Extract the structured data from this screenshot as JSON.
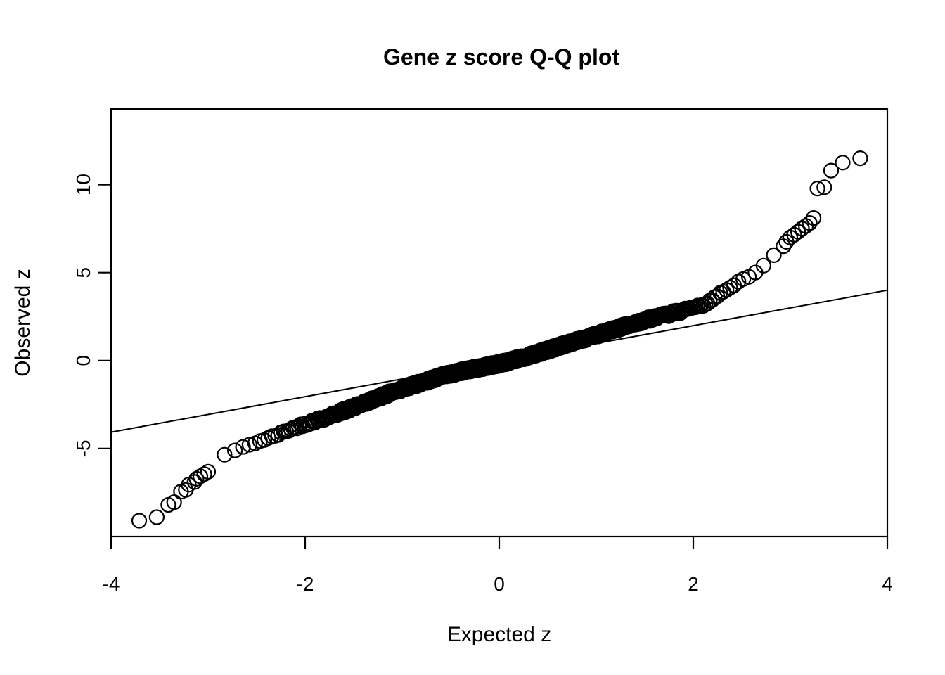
{
  "page": {
    "background": "#ffffff",
    "foreground": "#000000"
  },
  "chart_data": {
    "type": "scatter",
    "title": "Gene z score Q-Q plot",
    "xlabel": "Expected z",
    "ylabel": "Observed z",
    "xlim": [
      -4,
      4
    ],
    "ylim": [
      -10,
      14.3
    ],
    "x_ticks": [
      "-4",
      "-2",
      "0",
      "2",
      "4"
    ],
    "x_tick_values": [
      -4,
      -2,
      0,
      2,
      4
    ],
    "y_ticks": [
      "-5",
      "0",
      "5",
      "10"
    ],
    "y_tick_values": [
      -5,
      0,
      5,
      10
    ],
    "grid": false,
    "legend": "none",
    "point_style": {
      "marker": "open-circle",
      "color": "#000000",
      "radius_px": 10,
      "stroke_px": 2.2
    },
    "reference_line": {
      "slope": 1.009,
      "intercept": -0.035,
      "color": "#000000",
      "x_span": [
        -4,
        4
      ]
    },
    "curve_points": [
      [
        -2.96,
        -6.15
      ],
      [
        -2.9,
        -5.8
      ],
      [
        -2.83,
        -5.35
      ],
      [
        -2.7,
        -5.05
      ],
      [
        -2.6,
        -4.85
      ],
      [
        -2.45,
        -4.55
      ],
      [
        -2.32,
        -4.3
      ],
      [
        -2.15,
        -3.9
      ],
      [
        -2.0,
        -3.6
      ],
      [
        -1.8,
        -3.25
      ],
      [
        -1.6,
        -2.85
      ],
      [
        -1.4,
        -2.45
      ],
      [
        -1.2,
        -2.0
      ],
      [
        -1.0,
        -1.6
      ],
      [
        -0.8,
        -1.25
      ],
      [
        -0.6,
        -0.9
      ],
      [
        -0.4,
        -0.62
      ],
      [
        -0.2,
        -0.4
      ],
      [
        0.0,
        -0.18
      ],
      [
        0.2,
        0.1
      ],
      [
        0.4,
        0.42
      ],
      [
        0.6,
        0.78
      ],
      [
        0.8,
        1.12
      ],
      [
        1.0,
        1.45
      ],
      [
        1.2,
        1.8
      ],
      [
        1.4,
        2.12
      ],
      [
        1.6,
        2.45
      ],
      [
        1.8,
        2.7
      ],
      [
        2.0,
        2.95
      ],
      [
        2.15,
        3.3
      ],
      [
        2.35,
        4.1
      ],
      [
        2.5,
        4.55
      ],
      [
        2.6,
        4.85
      ],
      [
        2.7,
        5.25
      ],
      [
        2.8,
        5.8
      ],
      [
        2.9,
        6.4
      ]
    ],
    "band": {
      "x_range": [
        -2.96,
        2.9
      ],
      "p_range": [
        0.00187,
        0.99813
      ],
      "render_count": 1100,
      "jitter": 0.12,
      "seed": 42
    },
    "low_tail_points": [
      [
        -3.71,
        -9.1
      ],
      [
        -3.53,
        -8.9
      ],
      [
        -3.41,
        -8.2
      ],
      [
        -3.35,
        -8.05
      ],
      [
        -3.28,
        -7.45
      ],
      [
        -3.23,
        -7.35
      ],
      [
        -3.2,
        -7.05
      ],
      [
        -3.14,
        -6.9
      ],
      [
        -3.12,
        -6.72
      ],
      [
        -3.08,
        -6.58
      ],
      [
        -3.04,
        -6.45
      ],
      [
        -3.0,
        -6.32
      ]
    ],
    "high_tail_points": [
      [
        2.93,
        6.5
      ],
      [
        2.96,
        6.75
      ],
      [
        3.0,
        7.0
      ],
      [
        3.04,
        7.15
      ],
      [
        3.08,
        7.32
      ],
      [
        3.12,
        7.5
      ],
      [
        3.16,
        7.65
      ],
      [
        3.2,
        7.82
      ],
      [
        3.24,
        8.1
      ],
      [
        3.28,
        9.78
      ],
      [
        3.35,
        9.85
      ],
      [
        3.42,
        10.8
      ],
      [
        3.54,
        11.25
      ],
      [
        3.72,
        11.5
      ]
    ]
  }
}
